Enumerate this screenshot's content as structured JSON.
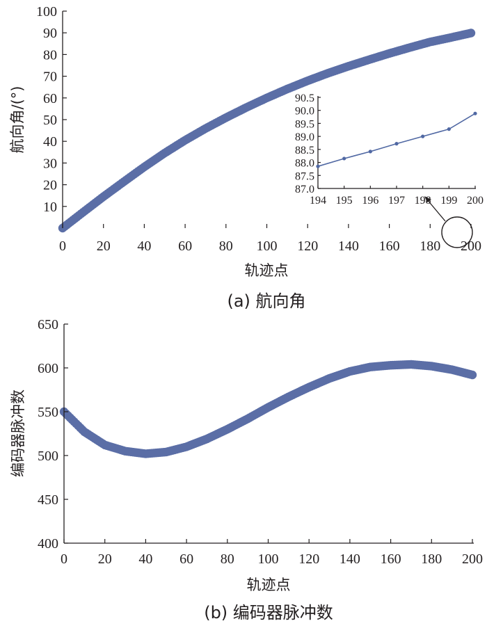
{
  "colors": {
    "series": "#5b6ea6",
    "inset_series": "#5068a3",
    "axis": "#231f20"
  },
  "chart_data": [
    {
      "type": "scatter",
      "caption": "(a)  航向角",
      "xlabel": "轨迹点",
      "ylabel": "航向角/(°)",
      "xlim": [
        0,
        200
      ],
      "ylim": [
        0,
        100
      ],
      "x_ticks": [
        "0",
        "20",
        "40",
        "60",
        "80",
        "100",
        "120",
        "140",
        "160",
        "180",
        "200"
      ],
      "y_ticks": [
        "10",
        "20",
        "30",
        "40",
        "50",
        "60",
        "70",
        "80",
        "90",
        "100"
      ],
      "series": [
        {
          "x": [
            0,
            10,
            20,
            30,
            40,
            50,
            60,
            70,
            80,
            90,
            100,
            110,
            120,
            130,
            140,
            150,
            160,
            170,
            180,
            190,
            200
          ],
          "y": [
            0,
            7.3,
            14.5,
            21.4,
            28.2,
            34.6,
            40.5,
            45.9,
            50.9,
            55.6,
            60.0,
            64.1,
            67.9,
            71.4,
            74.6,
            77.6,
            80.5,
            83.2,
            85.8,
            87.8,
            89.9
          ]
        }
      ],
      "inset": {
        "type": "line",
        "x": [
          194,
          195,
          196,
          197,
          198,
          199,
          200
        ],
        "y": [
          87.85,
          88.15,
          88.42,
          88.72,
          89.0,
          89.28,
          89.88
        ],
        "xlim": [
          194,
          200
        ],
        "ylim": [
          87.0,
          90.5
        ],
        "x_ticks": [
          "194",
          "195",
          "196",
          "197",
          "198",
          "199",
          "200"
        ],
        "y_ticks": [
          "87.0",
          "87.5",
          "88.0",
          "88.5",
          "89.0",
          "89.5",
          "90.0",
          "90.5"
        ]
      }
    },
    {
      "type": "scatter",
      "caption": "(b)  编码器脉冲数",
      "xlabel": "轨迹点",
      "ylabel": "编码器脉冲数",
      "xlim": [
        0,
        200
      ],
      "ylim": [
        400,
        650
      ],
      "x_ticks": [
        "0",
        "20",
        "40",
        "60",
        "80",
        "100",
        "120",
        "140",
        "160",
        "180",
        "200"
      ],
      "y_ticks": [
        "400",
        "450",
        "500",
        "550",
        "600",
        "650"
      ],
      "series": [
        {
          "x": [
            0,
            10,
            20,
            30,
            40,
            50,
            60,
            70,
            80,
            90,
            100,
            110,
            120,
            130,
            140,
            150,
            160,
            170,
            180,
            190,
            200
          ],
          "y": [
            550,
            527,
            512,
            505,
            502,
            504,
            510,
            519,
            530,
            542,
            555,
            567,
            578,
            588,
            596,
            601,
            603,
            604,
            602,
            598,
            592
          ]
        }
      ]
    }
  ]
}
